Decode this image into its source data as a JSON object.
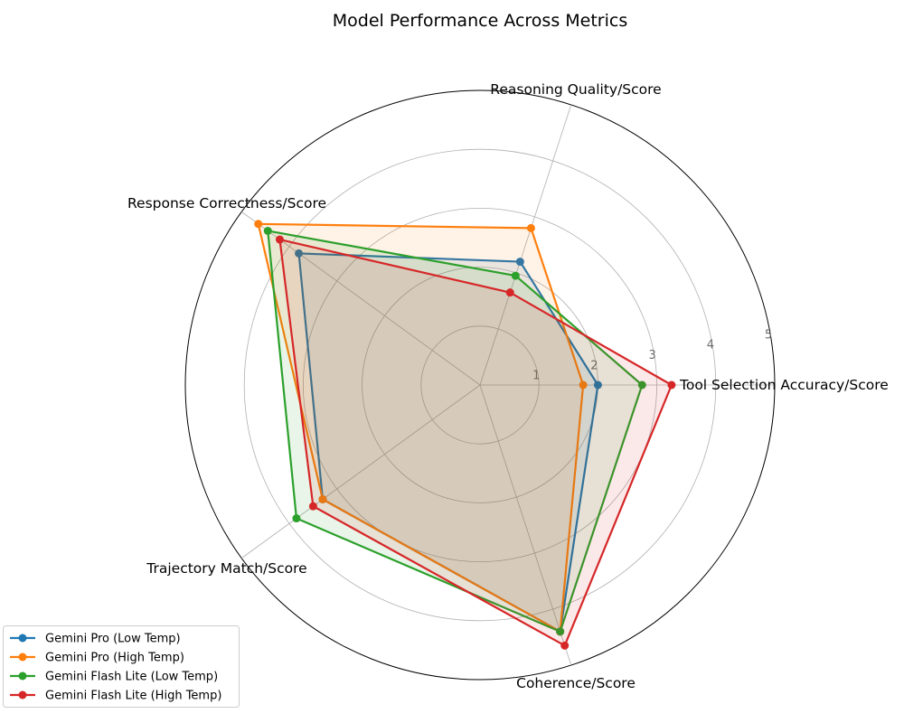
{
  "chart_data": {
    "type": "radar",
    "title": "Model Performance Across Metrics",
    "axes": [
      "Tool Selection Accuracy/Score",
      "Reasoning Quality/Score",
      "Response Correctness/Score",
      "Trajectory Match/Score",
      "Coherence/Score"
    ],
    "rlim": [
      0,
      5
    ],
    "rticks": [
      "1",
      "2",
      "3",
      "4",
      "5"
    ],
    "grid": true,
    "legend_position": "lower-left",
    "series": [
      {
        "name": "Gemini Pro (Low Temp)",
        "color": "#1f77b4",
        "values": [
          2.0,
          2.2,
          3.8,
          3.3,
          4.4
        ]
      },
      {
        "name": "Gemini Pro (High Temp)",
        "color": "#ff7f0e",
        "values": [
          1.75,
          2.8,
          4.65,
          3.3,
          4.4
        ]
      },
      {
        "name": "Gemini Flash Lite (Low Temp)",
        "color": "#2ca02c",
        "values": [
          2.75,
          1.95,
          4.45,
          3.85,
          4.4
        ]
      },
      {
        "name": "Gemini Flash Lite (High Temp)",
        "color": "#d62728",
        "values": [
          3.25,
          1.65,
          4.2,
          3.5,
          4.65
        ]
      }
    ]
  }
}
